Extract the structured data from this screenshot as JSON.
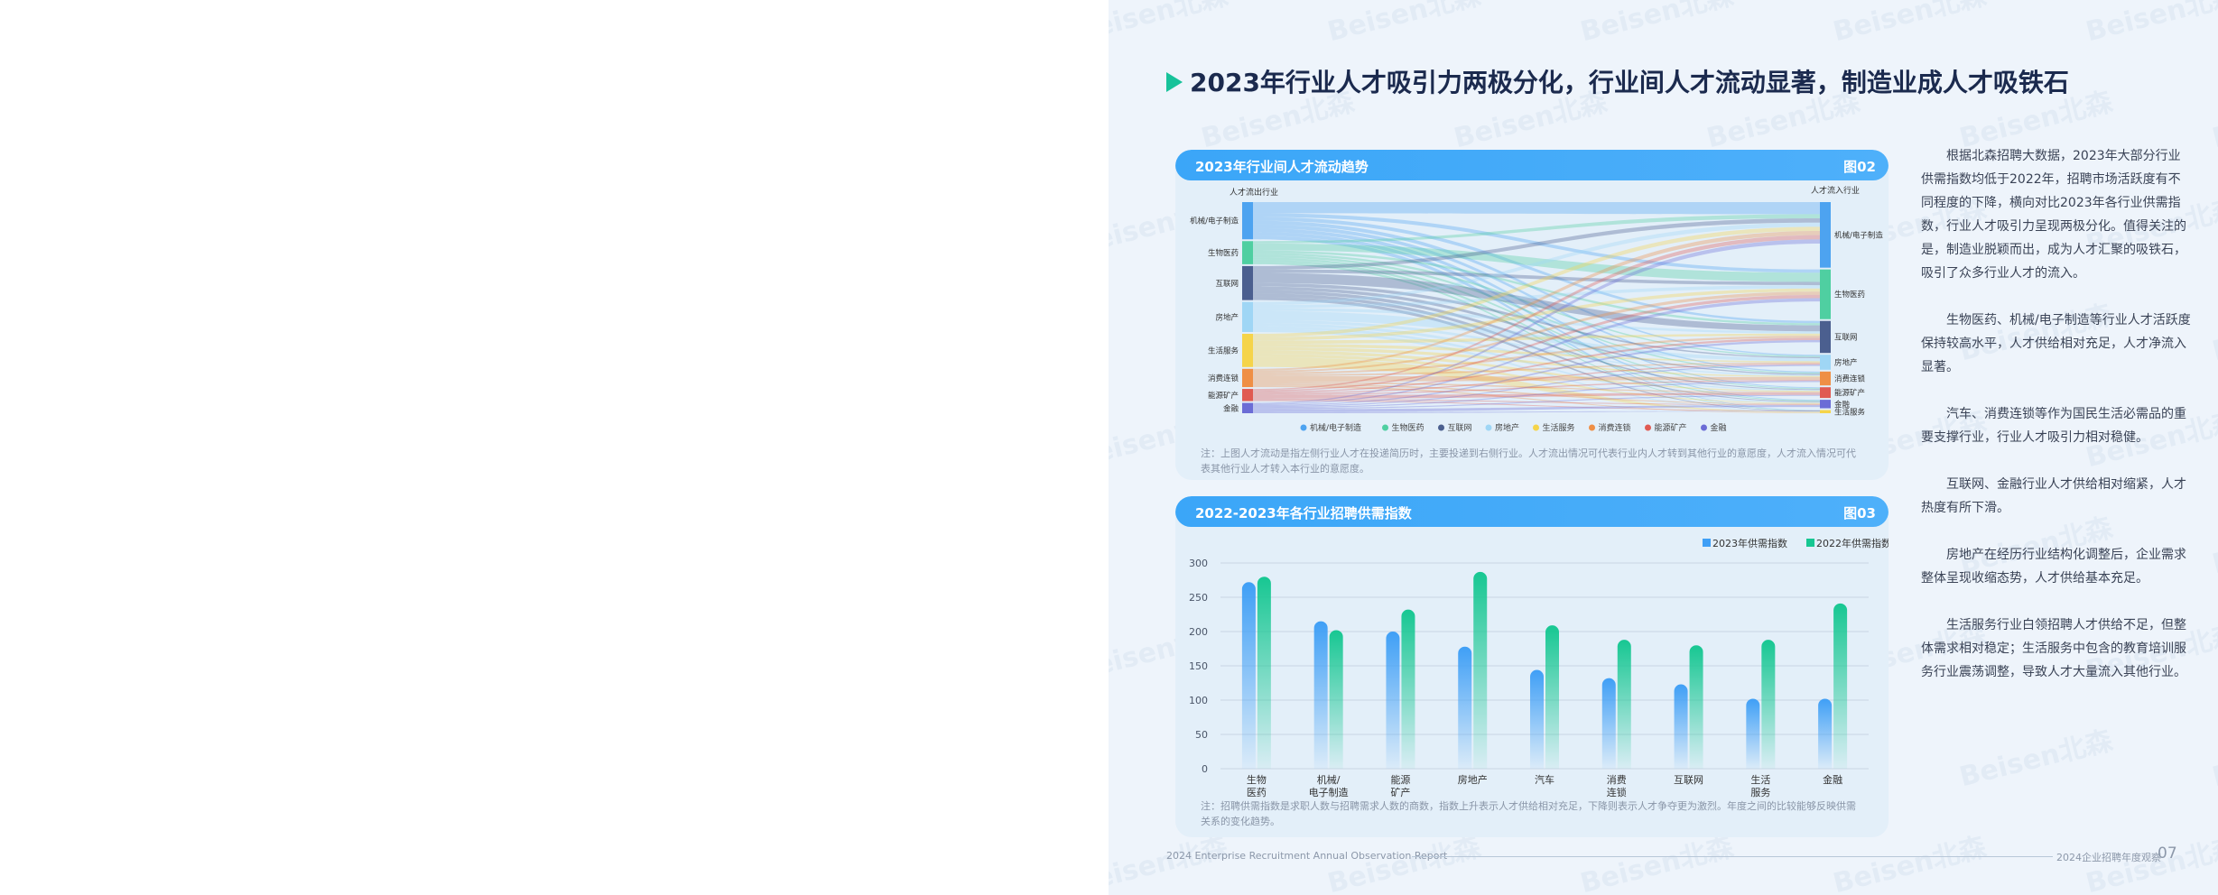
{
  "headline": "2023年行业人才吸引力两极分化，行业间人才流动显著，制造业成人才吸铁石",
  "watermark": "Beisen北森",
  "card1": {
    "title": "2023年行业间人才流动趋势",
    "fig": "图02",
    "left_header": "人才流出行业",
    "right_header": "人才流入行业",
    "note": "注：上图人才流动是指左侧行业人才在投递简历时，主要投递到右侧行业。人才流出情况可代表行业内人才转到其他行业的意愿度，人才流入情况可代表其他行业人才转入本行业的意愿度。"
  },
  "card2": {
    "title": "2022-2023年各行业招聘供需指数",
    "fig": "图03",
    "note": "注：招聘供需指数是求职人数与招聘需求人数的商数，指数上升表示人才供给相对充足，下降则表示人才争夺更为激烈。年度之间的比较能够反映供需关系的变化趋势。"
  },
  "chart_data": [
    {
      "type": "sankey",
      "title": "2023年行业间人才流动趋势",
      "left_nodes": [
        {
          "label": "机械/电子制造",
          "share": 0.177,
          "color": "#4da3f0"
        },
        {
          "label": "生物医药",
          "share": 0.11,
          "color": "#4fcfa1"
        },
        {
          "label": "互联网",
          "share": 0.162,
          "color": "#4b5f8f"
        },
        {
          "label": "房地产",
          "share": 0.143,
          "color": "#9fd6f5"
        },
        {
          "label": "生活服务",
          "share": 0.158,
          "color": "#f5d44a"
        },
        {
          "label": "消费连锁",
          "share": 0.087,
          "color": "#ef8f45"
        },
        {
          "label": "能源矿产",
          "share": 0.058,
          "color": "#e05a52"
        },
        {
          "label": "金融",
          "share": 0.049,
          "color": "#6b6cd6"
        }
      ],
      "right_nodes": [
        {
          "label": "机械/电子制造",
          "share": 0.293,
          "color": "#4da3f0"
        },
        {
          "label": "生物医药",
          "share": 0.222,
          "color": "#4fcfa1"
        },
        {
          "label": "互联网",
          "share": 0.143,
          "color": "#4b5f8f"
        },
        {
          "label": "房地产",
          "share": 0.067,
          "color": "#9fd6f5"
        },
        {
          "label": "消费连锁",
          "share": 0.062,
          "color": "#ef8f45"
        },
        {
          "label": "能源矿产",
          "share": 0.048,
          "color": "#e05a52"
        },
        {
          "label": "金融",
          "share": 0.038,
          "color": "#6b6cd6"
        },
        {
          "label": "生活服务",
          "share": 0.014,
          "color": "#f5d44a"
        }
      ],
      "legend": [
        "机械/电子制造",
        "生物医药",
        "互联网",
        "房地产",
        "生活服务",
        "消费连锁",
        "能源矿产",
        "金融"
      ]
    },
    {
      "type": "bar",
      "title": "2022-2023年各行业招聘供需指数",
      "categories": [
        "生物\n医药",
        "机械/\n电子制造",
        "能源\n矿产",
        "房地产",
        "汽车",
        "消费\n连锁",
        "互联网",
        "生活\n服务",
        "金融"
      ],
      "series": [
        {
          "name": "2023年供需指数",
          "values": [
            272,
            215,
            200,
            178,
            144,
            132,
            123,
            102,
            102
          ],
          "color": "#3f9ff6"
        },
        {
          "name": "2022年供需指数",
          "values": [
            280,
            202,
            232,
            287,
            209,
            188,
            180,
            188,
            241
          ],
          "color": "#17c792"
        }
      ],
      "ylim": [
        0,
        300
      ],
      "yticks": [
        0,
        50,
        100,
        150,
        200,
        250,
        300
      ],
      "legend_position": "top-right",
      "grid": true
    }
  ],
  "side_paragraphs": [
    "根据北森招聘大数据，2023年大部分行业供需指数均低于2022年，招聘市场活跃度有不同程度的下降，横向对比2023年各行业供需指数，行业人才吸引力呈现两极分化。值得关注的是，制造业脱颖而出，成为人才汇聚的吸铁石，吸引了众多行业人才的流入。",
    "生物医药、机械/电子制造等行业人才活跃度保持较高水平，人才供给相对充足，人才净流入显著。",
    "汽车、消费连锁等作为国民生活必需品的重要支撑行业，行业人才吸引力相对稳健。",
    "互联网、金融行业人才供给相对缩紧，人才热度有所下滑。",
    "房地产在经历行业结构化调整后，企业需求整体呈现收缩态势，人才供给基本充足。",
    "生活服务行业白领招聘人才供给不足，但整体需求相对稳定；生活服务中包含的教育培训服务行业震荡调整，导致人才大量流入其他行业。"
  ],
  "footer": {
    "left": "2024 Enterprise Recruitment Annual Observation Report",
    "right": "2024企业招聘年度观察",
    "page": "07"
  }
}
